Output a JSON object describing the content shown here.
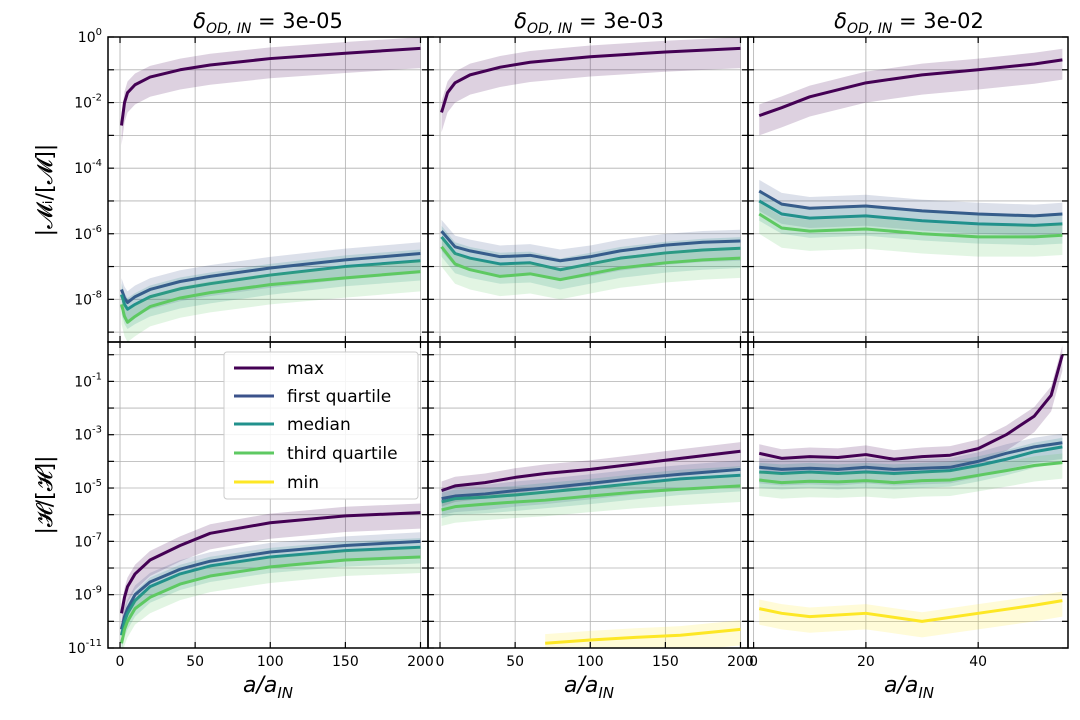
{
  "figure": {
    "column_titles": [
      {
        "prefix": "δ",
        "sub": "OD, IN",
        "suffix": " = 3e-05"
      },
      {
        "prefix": "δ",
        "sub": "OD, IN",
        "suffix": " = 3e-03"
      },
      {
        "prefix": "δ",
        "sub": "OD, IN",
        "suffix": " = 3e-02"
      }
    ],
    "row_ylabels": [
      "|𝓜ᵢ/[𝓜]|",
      "|𝓗/[𝓗]|"
    ],
    "xlabel": {
      "main": "a/a",
      "sub": "IN"
    },
    "legend": [
      "max",
      "first quartile",
      "median",
      "third quartile",
      "min"
    ],
    "colors": {
      "max": "#440154",
      "first quartile": "#3b528b",
      "median": "#21918c",
      "third quartile": "#5ec962",
      "min": "#fde725"
    }
  },
  "chart_data": [
    {
      "type": "line",
      "panel": "top-left",
      "yscale": "log",
      "title": "δOD, IN = 3e-05",
      "ylabel": "|Mi/[M]|",
      "xlabel": "",
      "xlim": [
        -8,
        205
      ],
      "ylim": [
        5e-10,
        1
      ],
      "xticks": [
        0,
        50,
        100,
        150,
        200
      ],
      "yticks": [
        1e-08,
        1e-06,
        0.0001,
        0.01,
        1
      ],
      "ytick_labels": [
        "10^-8",
        "10^-6",
        "10^-4",
        "10^-2",
        "10^0"
      ],
      "series": [
        {
          "name": "max",
          "x": [
            1,
            3,
            5,
            10,
            20,
            40,
            60,
            100,
            150,
            200
          ],
          "y": [
            0.002,
            0.01,
            0.02,
            0.035,
            0.06,
            0.1,
            0.14,
            0.22,
            0.32,
            0.45
          ]
        },
        {
          "name": "first quartile",
          "x": [
            1,
            3,
            5,
            10,
            20,
            40,
            60,
            100,
            150,
            200
          ],
          "y": [
            2e-08,
            1.1e-08,
            8e-09,
            1.2e-08,
            2e-08,
            3.5e-08,
            5e-08,
            9e-08,
            1.6e-07,
            2.5e-07
          ]
        },
        {
          "name": "median",
          "x": [
            1,
            3,
            5,
            10,
            20,
            40,
            60,
            100,
            150,
            200
          ],
          "y": [
            1.4e-08,
            7e-09,
            5e-09,
            7e-09,
            1.2e-08,
            2.1e-08,
            3e-08,
            5.5e-08,
            1e-07,
            1.5e-07
          ]
        },
        {
          "name": "third quartile",
          "x": [
            1,
            3,
            5,
            10,
            20,
            40,
            60,
            100,
            150,
            200
          ],
          "y": [
            7e-09,
            3e-09,
            2e-09,
            3e-09,
            6e-09,
            1.1e-08,
            1.6e-08,
            2.8e-08,
            4.5e-08,
            7e-08
          ]
        }
      ]
    },
    {
      "type": "line",
      "panel": "top-middle",
      "yscale": "log",
      "title": "δOD, IN = 3e-03",
      "ylabel": "",
      "xlabel": "",
      "xlim": [
        -8,
        205
      ],
      "ylim": [
        5e-10,
        1
      ],
      "xticks": [
        0,
        50,
        100,
        150,
        200
      ],
      "series": [
        {
          "name": "max",
          "x": [
            1,
            5,
            10,
            20,
            40,
            60,
            100,
            150,
            200
          ],
          "y": [
            0.005,
            0.02,
            0.04,
            0.07,
            0.12,
            0.17,
            0.25,
            0.35,
            0.45
          ]
        },
        {
          "name": "first quartile",
          "x": [
            1,
            10,
            20,
            40,
            60,
            80,
            100,
            120,
            150,
            175,
            200
          ],
          "y": [
            1.2e-06,
            4e-07,
            3e-07,
            2e-07,
            2.2e-07,
            1.5e-07,
            2e-07,
            3e-07,
            4.5e-07,
            5.5e-07,
            6e-07
          ]
        },
        {
          "name": "median",
          "x": [
            1,
            10,
            20,
            40,
            60,
            80,
            100,
            120,
            150,
            175,
            200
          ],
          "y": [
            8e-07,
            2.5e-07,
            1.8e-07,
            1.2e-07,
            1.3e-07,
            8e-08,
            1.2e-07,
            1.8e-07,
            2.6e-07,
            3.2e-07,
            3.6e-07
          ]
        },
        {
          "name": "third quartile",
          "x": [
            1,
            10,
            20,
            40,
            60,
            80,
            100,
            120,
            150,
            175,
            200
          ],
          "y": [
            4e-07,
            1.2e-07,
            8e-08,
            5e-08,
            6e-08,
            4e-08,
            6e-08,
            9e-08,
            1.3e-07,
            1.6e-07,
            1.8e-07
          ]
        }
      ]
    },
    {
      "type": "line",
      "panel": "top-right",
      "yscale": "log",
      "title": "δOD, IN = 3e-02",
      "ylabel": "",
      "xlabel": "",
      "xlim": [
        -1,
        56
      ],
      "ylim": [
        5e-10,
        1
      ],
      "xticks": [
        0,
        20,
        40
      ],
      "series": [
        {
          "name": "max",
          "x": [
            1,
            5,
            10,
            20,
            30,
            40,
            50,
            55
          ],
          "y": [
            0.004,
            0.007,
            0.015,
            0.04,
            0.07,
            0.1,
            0.15,
            0.2
          ]
        },
        {
          "name": "first quartile",
          "x": [
            1,
            5,
            10,
            20,
            30,
            40,
            50,
            55
          ],
          "y": [
            2e-05,
            8e-06,
            6e-06,
            7e-06,
            5e-06,
            4e-06,
            3.5e-06,
            4e-06
          ]
        },
        {
          "name": "median",
          "x": [
            1,
            5,
            10,
            20,
            30,
            40,
            50,
            55
          ],
          "y": [
            1e-05,
            4e-06,
            3e-06,
            3.5e-06,
            2.5e-06,
            2e-06,
            1.8e-06,
            2e-06
          ]
        },
        {
          "name": "third quartile",
          "x": [
            1,
            5,
            10,
            20,
            30,
            40,
            50,
            55
          ],
          "y": [
            4e-06,
            1.5e-06,
            1.2e-06,
            1.4e-06,
            1e-06,
            8e-07,
            8e-07,
            9e-07
          ]
        }
      ]
    },
    {
      "type": "line",
      "panel": "bottom-left",
      "yscale": "log",
      "title": "",
      "ylabel": "|H/[H]|",
      "xlabel": "a/aIN",
      "xlim": [
        -8,
        205
      ],
      "ylim": [
        1e-11,
        3
      ],
      "xticks": [
        0,
        50,
        100,
        150,
        200
      ],
      "xtick_labels": [
        "0",
        "50",
        "100",
        "150",
        "200"
      ],
      "yticks": [
        1e-11,
        1e-09,
        1e-07,
        1e-05,
        0.001,
        0.1
      ],
      "ytick_labels": [
        "10^-11",
        "10^-9",
        "10^-7",
        "10^-5",
        "10^-3",
        "10^-1"
      ],
      "legend_position": "upper-center",
      "series": [
        {
          "name": "max",
          "x": [
            1,
            3,
            5,
            10,
            20,
            40,
            60,
            100,
            150,
            200
          ],
          "y": [
            2e-10,
            8e-10,
            2e-09,
            6e-09,
            2e-08,
            7e-08,
            2e-07,
            5e-07,
            9e-07,
            1.2e-06
          ]
        },
        {
          "name": "first quartile",
          "x": [
            1,
            3,
            5,
            10,
            20,
            40,
            60,
            100,
            150,
            200
          ],
          "y": [
            5e-11,
            1.5e-10,
            3e-10,
            1e-09,
            3e-09,
            9e-09,
            1.8e-08,
            4e-08,
            7e-08,
            1e-07
          ]
        },
        {
          "name": "median",
          "x": [
            1,
            3,
            5,
            10,
            20,
            40,
            60,
            100,
            150,
            200
          ],
          "y": [
            3e-11,
            1e-10,
            2e-10,
            6e-10,
            2e-09,
            6e-09,
            1.2e-08,
            2.6e-08,
            4.5e-08,
            6e-08
          ]
        },
        {
          "name": "third quartile",
          "x": [
            1,
            3,
            5,
            10,
            20,
            40,
            60,
            100,
            150,
            200
          ],
          "y": [
            1.5e-11,
            5e-11,
            1e-10,
            3e-10,
            8e-10,
            2.5e-09,
            5e-09,
            1.1e-08,
            2e-08,
            2.6e-08
          ]
        }
      ]
    },
    {
      "type": "line",
      "panel": "bottom-middle",
      "yscale": "log",
      "title": "",
      "ylabel": "",
      "xlabel": "a/aIN",
      "xlim": [
        -8,
        205
      ],
      "ylim": [
        1e-11,
        3
      ],
      "xticks": [
        0,
        50,
        100,
        150,
        200
      ],
      "series": [
        {
          "name": "max",
          "x": [
            1,
            10,
            30,
            50,
            70,
            100,
            130,
            160,
            200
          ],
          "y": [
            8e-06,
            1.2e-05,
            1.6e-05,
            2.5e-05,
            3.5e-05,
            5e-05,
            8e-05,
            0.00013,
            0.00024
          ]
        },
        {
          "name": "first quartile",
          "x": [
            1,
            10,
            30,
            50,
            70,
            100,
            130,
            160,
            200
          ],
          "y": [
            4e-06,
            5e-06,
            6e-06,
            8e-06,
            1e-05,
            1.5e-05,
            2.3e-05,
            3.3e-05,
            5e-05
          ]
        },
        {
          "name": "median",
          "x": [
            1,
            10,
            30,
            50,
            70,
            100,
            130,
            160,
            200
          ],
          "y": [
            3e-06,
            4e-06,
            4.5e-06,
            5.5e-06,
            7e-06,
            1e-05,
            1.5e-05,
            2.2e-05,
            3e-05
          ]
        },
        {
          "name": "third quartile",
          "x": [
            1,
            10,
            30,
            50,
            70,
            100,
            130,
            160,
            200
          ],
          "y": [
            1.5e-06,
            2e-06,
            2.5e-06,
            3e-06,
            3.5e-06,
            5e-06,
            7e-06,
            9e-06,
            1.2e-05
          ]
        },
        {
          "name": "min",
          "x": [
            70,
            100,
            130,
            160,
            200
          ],
          "y": [
            1.5e-11,
            2e-11,
            2.5e-11,
            3e-11,
            5e-11
          ]
        }
      ]
    },
    {
      "type": "line",
      "panel": "bottom-right",
      "yscale": "log",
      "title": "",
      "ylabel": "",
      "xlabel": "a/aIN",
      "xlim": [
        -1,
        56
      ],
      "ylim": [
        1e-11,
        3
      ],
      "xticks": [
        0,
        20,
        40
      ],
      "xtick_labels": [
        "0",
        "20",
        "40"
      ],
      "series": [
        {
          "name": "max",
          "x": [
            1,
            5,
            10,
            15,
            20,
            25,
            30,
            35,
            40,
            45,
            50,
            53,
            55
          ],
          "y": [
            0.0002,
            0.00013,
            0.00015,
            0.00014,
            0.00018,
            0.00012,
            0.00015,
            0.00017,
            0.0003,
            0.001,
            0.005,
            0.03,
            1.0
          ]
        },
        {
          "name": "first quartile",
          "x": [
            1,
            5,
            10,
            15,
            20,
            25,
            30,
            35,
            40,
            45,
            50,
            55
          ],
          "y": [
            6e-05,
            5e-05,
            5.5e-05,
            5e-05,
            6e-05,
            5e-05,
            5.5e-05,
            6e-05,
            0.0001,
            0.0002,
            0.00035,
            0.0005
          ]
        },
        {
          "name": "median",
          "x": [
            1,
            5,
            10,
            15,
            20,
            25,
            30,
            35,
            40,
            45,
            50,
            55
          ],
          "y": [
            4e-05,
            3.5e-05,
            4e-05,
            3.5e-05,
            4e-05,
            3.5e-05,
            4e-05,
            4.5e-05,
            7e-05,
            0.00012,
            0.00023,
            0.00035
          ]
        },
        {
          "name": "third quartile",
          "x": [
            1,
            5,
            10,
            15,
            20,
            25,
            30,
            35,
            40,
            45,
            50,
            55
          ],
          "y": [
            2e-05,
            1.6e-05,
            1.8e-05,
            1.7e-05,
            1.9e-05,
            1.6e-05,
            1.9e-05,
            2e-05,
            3e-05,
            4.5e-05,
            7e-05,
            9e-05
          ]
        },
        {
          "name": "min",
          "x": [
            1,
            5,
            10,
            20,
            30,
            40,
            50,
            55
          ],
          "y": [
            3e-10,
            2e-10,
            1.5e-10,
            2e-10,
            1e-10,
            2e-10,
            4e-10,
            6e-10
          ]
        }
      ]
    }
  ]
}
